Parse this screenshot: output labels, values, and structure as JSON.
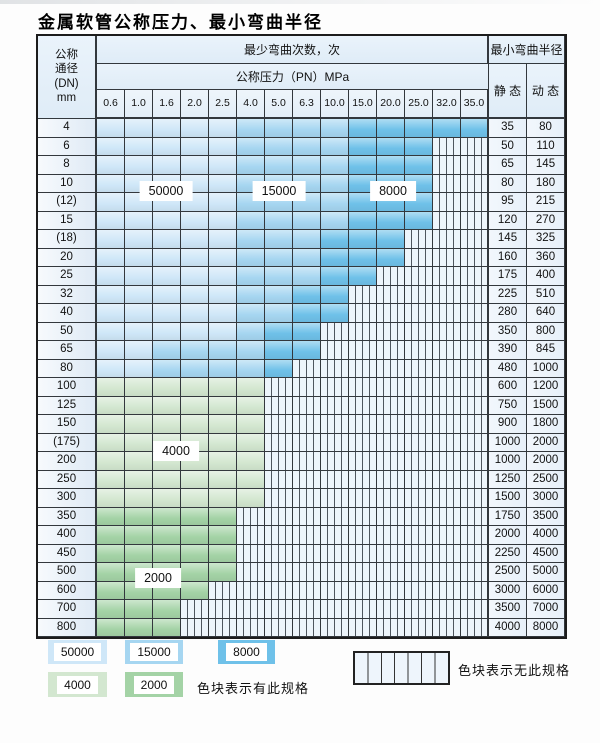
{
  "title": "金属软管公称压力、最小弯曲半径",
  "table": {
    "header": {
      "dn_lines": [
        "公称",
        "通径",
        "(DN)",
        "mm"
      ],
      "bend_cycles": "最少弯曲次数，次",
      "pressure": "公称压力（PN）MPa",
      "radius": "最小弯曲半径",
      "static": "静 态",
      "dynamic": "动 态",
      "pressures": [
        "0.6",
        "1.0",
        "1.6",
        "2.0",
        "2.5",
        "4.0",
        "5.0",
        "6.3",
        "10.0",
        "15.0",
        "20.0",
        "25.0",
        "32.0",
        "35.0"
      ]
    },
    "zone_codes": {
      "A": {
        "label": "50000",
        "color": "#cfe7f8"
      },
      "B": {
        "label": "15000",
        "color": "#a6d6f1"
      },
      "C": {
        "label": "8000",
        "color": "#6fc1e9"
      },
      "D": {
        "label": "4000",
        "color": "#d3e7d0"
      },
      "E": {
        "label": "2000",
        "color": "#a4d3a6"
      },
      "N": {
        "label": "无此规格"
      }
    },
    "rows": [
      {
        "dn": "4",
        "cells": "AAAAABBBBCCCCC",
        "static": "35",
        "dynamic": "80"
      },
      {
        "dn": "6",
        "cells": "AAAAABBBBCCCNN",
        "static": "50",
        "dynamic": "110"
      },
      {
        "dn": "8",
        "cells": "AAAAABBBBCCCNN",
        "static": "65",
        "dynamic": "145"
      },
      {
        "dn": "10",
        "cells": "AAAAABBBBCCCNN",
        "static": "80",
        "dynamic": "180"
      },
      {
        "dn": "(12)",
        "cells": "AAAAABBBBCCCNN",
        "static": "95",
        "dynamic": "215"
      },
      {
        "dn": "15",
        "cells": "AAAAABBBBCCCNN",
        "static": "120",
        "dynamic": "270"
      },
      {
        "dn": "(18)",
        "cells": "AAAAABBBCCCNNN",
        "static": "145",
        "dynamic": "325"
      },
      {
        "dn": "20",
        "cells": "AAAAABBBCCCNNN",
        "static": "160",
        "dynamic": "360"
      },
      {
        "dn": "25",
        "cells": "AAAAABBBCCNNNN",
        "static": "175",
        "dynamic": "400"
      },
      {
        "dn": "32",
        "cells": "AAAAABBCCNNNNN",
        "static": "225",
        "dynamic": "510"
      },
      {
        "dn": "40",
        "cells": "AAAAABBCCNNNNN",
        "static": "280",
        "dynamic": "640"
      },
      {
        "dn": "50",
        "cells": "AAAAABCCNNNNNN",
        "static": "350",
        "dynamic": "800"
      },
      {
        "dn": "65",
        "cells": "AABBBBCCNNNNNN",
        "static": "390",
        "dynamic": "845"
      },
      {
        "dn": "80",
        "cells": "AABBBBCNNNNNNN",
        "static": "480",
        "dynamic": "1000"
      },
      {
        "dn": "100",
        "cells": "DDDDDDNNNNNNNN",
        "static": "600",
        "dynamic": "1200"
      },
      {
        "dn": "125",
        "cells": "DDDDDDNNNNNNNN",
        "static": "750",
        "dynamic": "1500"
      },
      {
        "dn": "150",
        "cells": "DDDDDDNNNNNNNN",
        "static": "900",
        "dynamic": "1800"
      },
      {
        "dn": "(175)",
        "cells": "DDDDDDNNNNNNNN",
        "static": "1000",
        "dynamic": "2000"
      },
      {
        "dn": "200",
        "cells": "DDDDDDNNNNNNNN",
        "static": "1000",
        "dynamic": "2000"
      },
      {
        "dn": "250",
        "cells": "DDDDDDNNNNNNNN",
        "static": "1250",
        "dynamic": "2500"
      },
      {
        "dn": "300",
        "cells": "DDDDDDNNNNNNNN",
        "static": "1500",
        "dynamic": "3000"
      },
      {
        "dn": "350",
        "cells": "EEEEENNNNNNNNN",
        "static": "1750",
        "dynamic": "3500"
      },
      {
        "dn": "400",
        "cells": "EEEEENNNNNNNNN",
        "static": "2000",
        "dynamic": "4000"
      },
      {
        "dn": "450",
        "cells": "EEEEENNNNNNNNN",
        "static": "2250",
        "dynamic": "4500"
      },
      {
        "dn": "500",
        "cells": "EEEEENNNNNNNNN",
        "static": "2500",
        "dynamic": "5000"
      },
      {
        "dn": "600",
        "cells": "EEEENNNNNNNNNN",
        "static": "3000",
        "dynamic": "6000"
      },
      {
        "dn": "700",
        "cells": "EEENNNNNNNNNNN",
        "static": "3500",
        "dynamic": "7000"
      },
      {
        "dn": "800",
        "cells": "EEENNNNNNNNNNN",
        "static": "4000",
        "dynamic": "8000"
      }
    ]
  },
  "legend": {
    "has_spec_label": "色块表示有此规格",
    "no_spec_label": "色块表示无此规格"
  }
}
